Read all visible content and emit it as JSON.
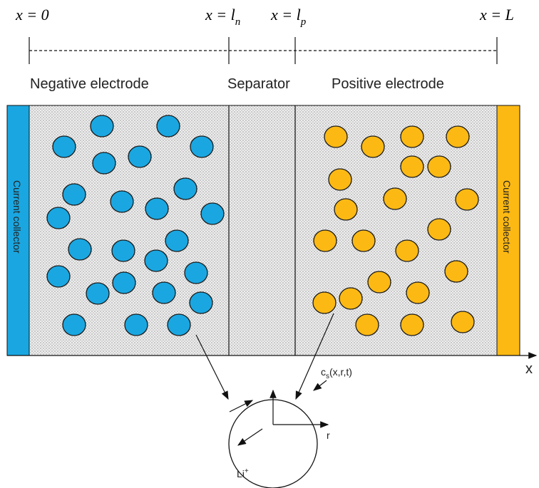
{
  "positions": [
    {
      "base": "x = 0"
    },
    {
      "base": "x = l",
      "sub": "n"
    },
    {
      "base": "x = l",
      "sub": "p"
    },
    {
      "base": "x = L"
    }
  ],
  "regions": {
    "negative": "Negative electrode",
    "separator": "Separator",
    "positive": "Positive electrode"
  },
  "collectors": {
    "left": "Current collector",
    "right": "Current collector"
  },
  "axis_label": "x",
  "particle": {
    "concentration": {
      "base": "c",
      "sub": "s",
      "rest": "(x,r,t)"
    },
    "radius": "r",
    "ion": {
      "base": "Li",
      "sup": "+"
    }
  }
}
